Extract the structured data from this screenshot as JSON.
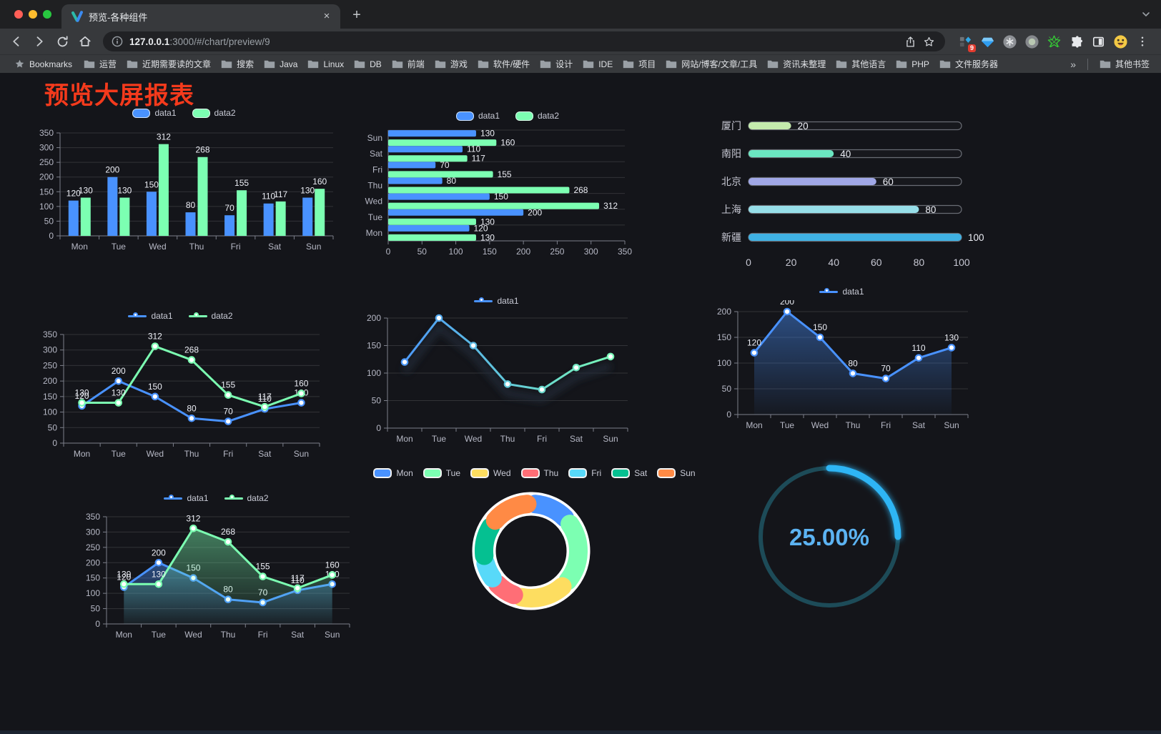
{
  "page": {
    "title": "预览大屏报表",
    "title_color": "#f43a1c",
    "background": "#14151a"
  },
  "browser": {
    "traffic_lights": [
      "#ff5f57",
      "#febc2e",
      "#28c840"
    ],
    "tab": {
      "title": "预览-各种组件",
      "close_icon": "×",
      "new_tab_icon": "+"
    },
    "address": {
      "host": "127.0.0.1",
      "rest": ":3000/#/chart/preview/9"
    },
    "extensions_badge": "9",
    "bookmarks_bar": {
      "root_label": "Bookmarks",
      "folders": [
        "运营",
        "近期需要读的文章",
        "搜索",
        "Java",
        "Linux",
        "DB",
        "前端",
        "游戏",
        "软件/硬件",
        "设计",
        "IDE",
        "项目",
        "网站/博客/文章/工具",
        "资讯未整理",
        "其他语言",
        "PHP",
        "文件服务器"
      ],
      "overflow_icon": "»",
      "other_label": "其他书签"
    }
  },
  "chart_data": [
    {
      "type": "bar",
      "categories": [
        "Mon",
        "Tue",
        "Wed",
        "Thu",
        "Fri",
        "Sat",
        "Sun"
      ],
      "series": [
        {
          "name": "data1",
          "color": "#4992ff",
          "values": [
            120,
            200,
            150,
            80,
            70,
            110,
            130
          ]
        },
        {
          "name": "data2",
          "color": "#7cffb2",
          "values": [
            130,
            130,
            312,
            268,
            155,
            117,
            160
          ]
        }
      ],
      "ylim": [
        0,
        350
      ],
      "ytick": 50,
      "value_labels": true,
      "grid": true,
      "legend_position": "top"
    },
    {
      "type": "bar-horizontal",
      "categories": [
        "Mon",
        "Tue",
        "Wed",
        "Thu",
        "Fri",
        "Sat",
        "Sun"
      ],
      "series": [
        {
          "name": "data1",
          "color": "#4992ff",
          "values": [
            120,
            200,
            150,
            80,
            70,
            110,
            130
          ]
        },
        {
          "name": "data2",
          "color": "#7cffb2",
          "values": [
            130,
            130,
            312,
            268,
            155,
            117,
            160
          ]
        }
      ],
      "xlim": [
        0,
        350
      ],
      "xtick": 50,
      "value_labels": true,
      "grid": true,
      "legend_position": "top"
    },
    {
      "type": "progress",
      "rows": [
        {
          "label": "厦门",
          "value": 20,
          "color": "#c4ebad"
        },
        {
          "label": "南阳",
          "value": 40,
          "color": "#6be6c1"
        },
        {
          "label": "北京",
          "value": 60,
          "color": "#a0a7e6"
        },
        {
          "label": "上海",
          "value": 80,
          "color": "#96dee8"
        },
        {
          "label": "新疆",
          "value": 100,
          "color": "#3fb1e3"
        }
      ],
      "max": 100,
      "xticks": [
        0,
        20,
        40,
        60,
        80,
        100
      ]
    },
    {
      "type": "line",
      "categories": [
        "Mon",
        "Tue",
        "Wed",
        "Thu",
        "Fri",
        "Sat",
        "Sun"
      ],
      "series": [
        {
          "name": "data1",
          "color": "#4992ff",
          "values": [
            120,
            200,
            150,
            80,
            70,
            110,
            130
          ],
          "labels": true
        },
        {
          "name": "data2",
          "color": "#7cffb2",
          "values": [
            130,
            130,
            312,
            268,
            155,
            117,
            160
          ],
          "labels": true
        }
      ],
      "ylim": [
        0,
        350
      ],
      "ytick": 50,
      "legend_position": "top"
    },
    {
      "type": "line",
      "categories": [
        "Mon",
        "Tue",
        "Wed",
        "Thu",
        "Fri",
        "Sat",
        "Sun"
      ],
      "series": [
        {
          "name": "data1",
          "color": "#4992ff",
          "gradient": [
            "#4992ff",
            "#7cffb2"
          ],
          "values": [
            120,
            200,
            150,
            80,
            70,
            110,
            130
          ],
          "labels": false
        }
      ],
      "ylim": [
        0,
        200
      ],
      "ytick": 50,
      "shadow": true,
      "legend_position": "top"
    },
    {
      "type": "line",
      "categories": [
        "Mon",
        "Tue",
        "Wed",
        "Thu",
        "Fri",
        "Sat",
        "Sun"
      ],
      "series": [
        {
          "name": "data1",
          "color": "#4992ff",
          "values": [
            120,
            200,
            150,
            80,
            70,
            110,
            130
          ],
          "area": true,
          "labels": true
        }
      ],
      "ylim": [
        0,
        200
      ],
      "ytick": 50,
      "legend_position": "top"
    },
    {
      "type": "line",
      "categories": [
        "Mon",
        "Tue",
        "Wed",
        "Thu",
        "Fri",
        "Sat",
        "Sun"
      ],
      "series": [
        {
          "name": "data1",
          "color": "#4992ff",
          "values": [
            120,
            200,
            150,
            80,
            70,
            110,
            130
          ],
          "area": true,
          "labels": true
        },
        {
          "name": "data2",
          "color": "#7cffb2",
          "values": [
            130,
            130,
            312,
            268,
            155,
            117,
            160
          ],
          "area": true,
          "labels": true
        }
      ],
      "ylim": [
        0,
        350
      ],
      "ytick": 50,
      "legend_position": "top"
    },
    {
      "type": "donut",
      "items": [
        {
          "name": "Mon",
          "value": 120,
          "color": "#4992ff"
        },
        {
          "name": "Tue",
          "value": 200,
          "color": "#7cffb2"
        },
        {
          "name": "Wed",
          "value": 150,
          "color": "#fddd60"
        },
        {
          "name": "Thu",
          "value": 80,
          "color": "#ff6e76"
        },
        {
          "name": "Fri",
          "value": 70,
          "color": "#58d9f9"
        },
        {
          "name": "Sat",
          "value": 110,
          "color": "#05c091"
        },
        {
          "name": "Sun",
          "value": 130,
          "color": "#ff8a45"
        }
      ],
      "legend_position": "top"
    },
    {
      "type": "gauge",
      "value": 25,
      "max": 100,
      "label": "25.00%",
      "progress_color": "#2eb5f5",
      "track_color": "#1d4b58",
      "text_color": "#5cb3f2"
    }
  ]
}
